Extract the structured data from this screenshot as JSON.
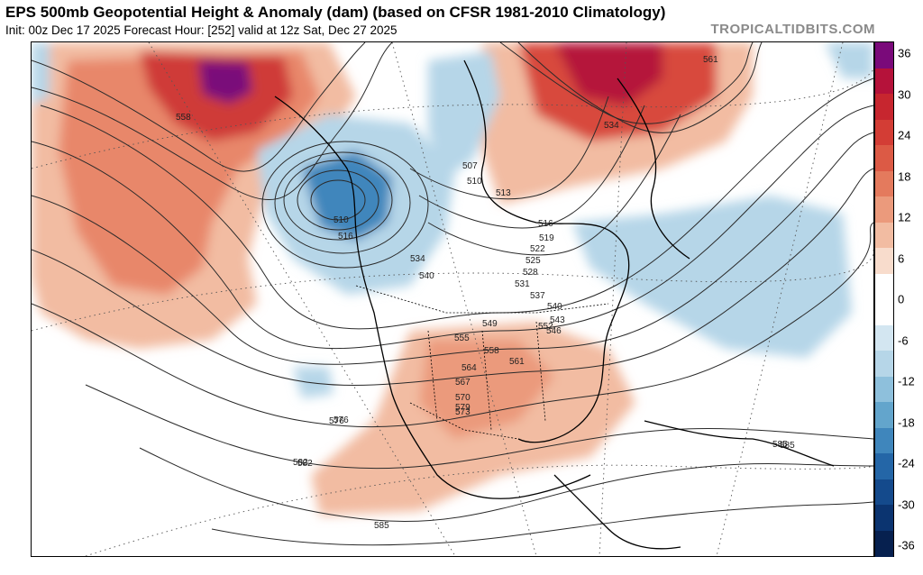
{
  "header": {
    "title": "EPS 500mb Geopotential Height & Anomaly (dam) (based on CFSR 1981-2010 Climatology)",
    "subtitle": "Init: 00z Dec 17 2025   Forecast Hour: [252]   valid at 12z Sat, Dec 27 2025",
    "brand": "TROPICALTIDBITS.COM"
  },
  "colorbar": {
    "ticks": [
      "36",
      "30",
      "24",
      "18",
      "12",
      "6",
      "0",
      "-6",
      "-12",
      "-18",
      "-24",
      "-30",
      "-36"
    ],
    "colors_top_to_bottom": [
      "#7a0a7a",
      "#b5123a",
      "#c7262f",
      "#d33d35",
      "#dc5a45",
      "#e47a5d",
      "#eb9a7c",
      "#f2bca2",
      "#f8dccc",
      "#ffffff",
      "#ffffff",
      "#d3e6f1",
      "#b6d6e8",
      "#8ec0dc",
      "#63a5cc",
      "#3f86bc",
      "#2466a7",
      "#144a8c",
      "#0b3470",
      "#06204f"
    ]
  },
  "map": {
    "region": "North America",
    "contour_labels": [
      "558",
      "561",
      "534",
      "507",
      "510",
      "513",
      "516",
      "519",
      "522",
      "525",
      "528",
      "531",
      "537",
      "540",
      "543",
      "546",
      "549",
      "552",
      "555",
      "558",
      "561",
      "564",
      "567",
      "570",
      "573",
      "576",
      "579",
      "582",
      "585",
      "510",
      "516",
      "534",
      "540",
      "576",
      "582",
      "585",
      "585"
    ]
  }
}
